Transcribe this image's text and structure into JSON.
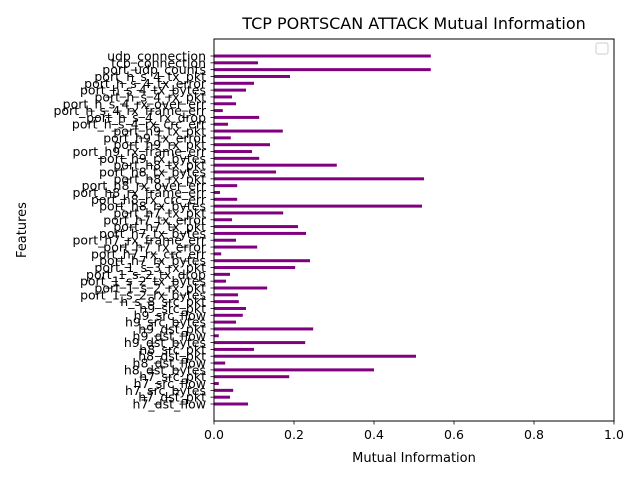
{
  "chart_data": {
    "type": "bar",
    "orientation": "horizontal",
    "title": "TCP PORTSCAN ATTACK Mutual Information",
    "xlabel": "Mutual Information",
    "ylabel": "Features",
    "xlim": [
      0,
      1.0
    ],
    "xticks": [
      "0.0",
      "0.2",
      "0.4",
      "0.6",
      "0.8",
      "1.0"
    ],
    "legend": "top-right (empty)",
    "grid": false,
    "bar_color": "#800080",
    "categories": [
      "h7_dst_flow",
      "h7_dst_pkt",
      "h7_src_bytes",
      "h7_src_flow",
      "h7_src_pkt",
      "h8_dst_bytes",
      "h8_dst_flow",
      "h8_dst_pkt",
      "h8_src_pkt",
      "h9_dst_bytes",
      "h9_dst_flow",
      "h9_dst_pkt",
      "h9_src_bytes",
      "h9_src_flow",
      "h9_src_pkt",
      "h_s_8_src_pkt",
      "port_1_s_2_rx_bytes",
      "port_1_s_2_rx_pkt",
      "port_1_s_2_tx_bytes",
      "port_1_s_2_tx_drop",
      "port_1_s_3_rx_pkt",
      "port_h7_rx_bytes",
      "port_h7_rx_crc_err",
      "port_h7_rx_error",
      "port_h7_rx_frame_err",
      "port_h7_tx_bytes",
      "port_h7_tx_pkt",
      "port_h7_tx_error",
      "port_h7_tx_pkt",
      "port_h8_rx_bytes",
      "port_h8_rx_crc_err",
      "port_h8_rx_frame_err",
      "port_h8_rx_over_err",
      "port_h8_rx_pkt",
      "port_h8_tx_bytes",
      "port_h8_tx_pkt",
      "port_h9_rx_bytes",
      "port_h9_rx_frame_err",
      "port_h9_rx_pkt",
      "port_h9_tx_error",
      "port_h9_tx_pkt",
      "port_h_s_4_rx_crc_err",
      "port_h_s_4_rx_drop",
      "port_h_s_4_rx_frame_err",
      "port_h_s_4_rx_over_err",
      "port_h_s_4_rx_pkt",
      "port_h_s_4_tx_bytes",
      "port_h_s_4_tx_error",
      "port_h_s_4_tx_pkt",
      "port_udp_counts",
      "tcp_connection",
      "udp_connection"
    ],
    "values": [
      0.085,
      0.04,
      0.048,
      0.012,
      0.188,
      0.4,
      0.028,
      0.505,
      0.1,
      0.228,
      0.012,
      0.248,
      0.055,
      0.072,
      0.08,
      0.062,
      0.06,
      0.133,
      0.03,
      0.04,
      0.203,
      0.24,
      0.018,
      0.108,
      0.055,
      0.23,
      0.21,
      0.045,
      0.173,
      0.52,
      0.058,
      0.015,
      0.058,
      0.525,
      0.155,
      0.307,
      0.113,
      0.095,
      0.14,
      0.042,
      0.172,
      0.035,
      0.113,
      0.022,
      0.055,
      0.045,
      0.08,
      0.1,
      0.19,
      0.542,
      0.11,
      0.542
    ]
  }
}
